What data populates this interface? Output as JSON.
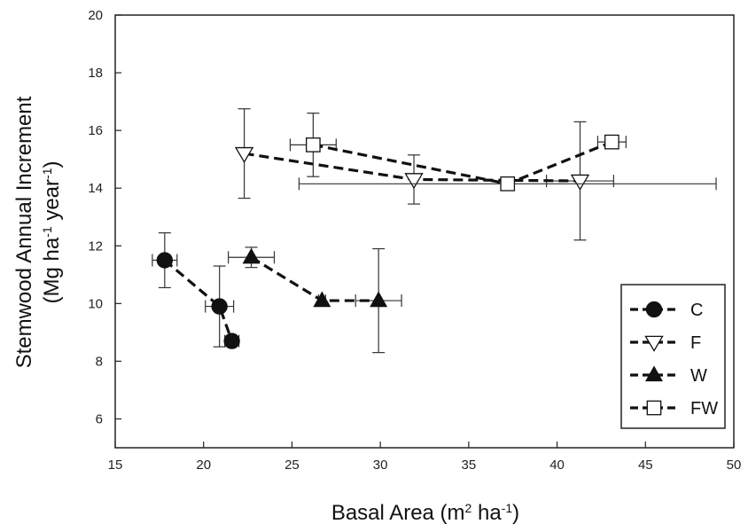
{
  "chart_data": {
    "type": "scatter",
    "title": "",
    "xlabel": {
      "main": "Basal Area (m",
      "sup1": "2",
      "mid": " ha",
      "sup2": "-1",
      "end": ")"
    },
    "ylabel": {
      "line1": "Stemwood Annual Increment",
      "line2": {
        "main": "(Mg ha",
        "sup1": "-1",
        "mid": " year",
        "sup2": "-1",
        "end": ")"
      }
    },
    "xlim": [
      15,
      50
    ],
    "ylim": [
      5,
      20
    ],
    "xticks": [
      15,
      20,
      25,
      30,
      35,
      40,
      45,
      50
    ],
    "yticks": [
      6,
      8,
      10,
      12,
      14,
      16,
      18,
      20
    ],
    "grid": false,
    "legend_position": "bottom-right",
    "series": [
      {
        "name": "C",
        "marker": "circle",
        "points": [
          {
            "x": 17.8,
            "y": 11.5,
            "xerr": 0.7,
            "yerr": 0.95
          },
          {
            "x": 20.9,
            "y": 9.9,
            "xerr": 0.8,
            "yerr": 1.4
          },
          {
            "x": 21.6,
            "y": 8.7,
            "xerr": 0.4,
            "yerr": 0
          }
        ]
      },
      {
        "name": "F",
        "marker": "triangle-down-open",
        "points": [
          {
            "x": 22.3,
            "y": 15.2,
            "xerr": 0,
            "yerr": 1.55
          },
          {
            "x": 31.9,
            "y": 14.3,
            "xerr": 0,
            "yerr": 0.85
          },
          {
            "x": 41.3,
            "y": 14.25,
            "xerr": 1.9,
            "yerr": 2.05
          }
        ]
      },
      {
        "name": "W",
        "marker": "triangle-up",
        "points": [
          {
            "x": 22.7,
            "y": 11.6,
            "xerr": 1.3,
            "yerr": 0.35
          },
          {
            "x": 26.7,
            "y": 10.1,
            "xerr": 0.2,
            "yerr": 0
          },
          {
            "x": 29.9,
            "y": 10.1,
            "xerr": 1.3,
            "yerr": 1.8
          }
        ]
      },
      {
        "name": "FW",
        "marker": "square-open",
        "points": [
          {
            "x": 26.2,
            "y": 15.5,
            "xerr": 1.3,
            "yerr": 1.1
          },
          {
            "x": 37.2,
            "y": 14.15,
            "xerr": 11.8,
            "yerr": 0
          },
          {
            "x": 43.1,
            "y": 15.6,
            "xerr": 0.8,
            "yerr": 0
          }
        ]
      }
    ]
  }
}
